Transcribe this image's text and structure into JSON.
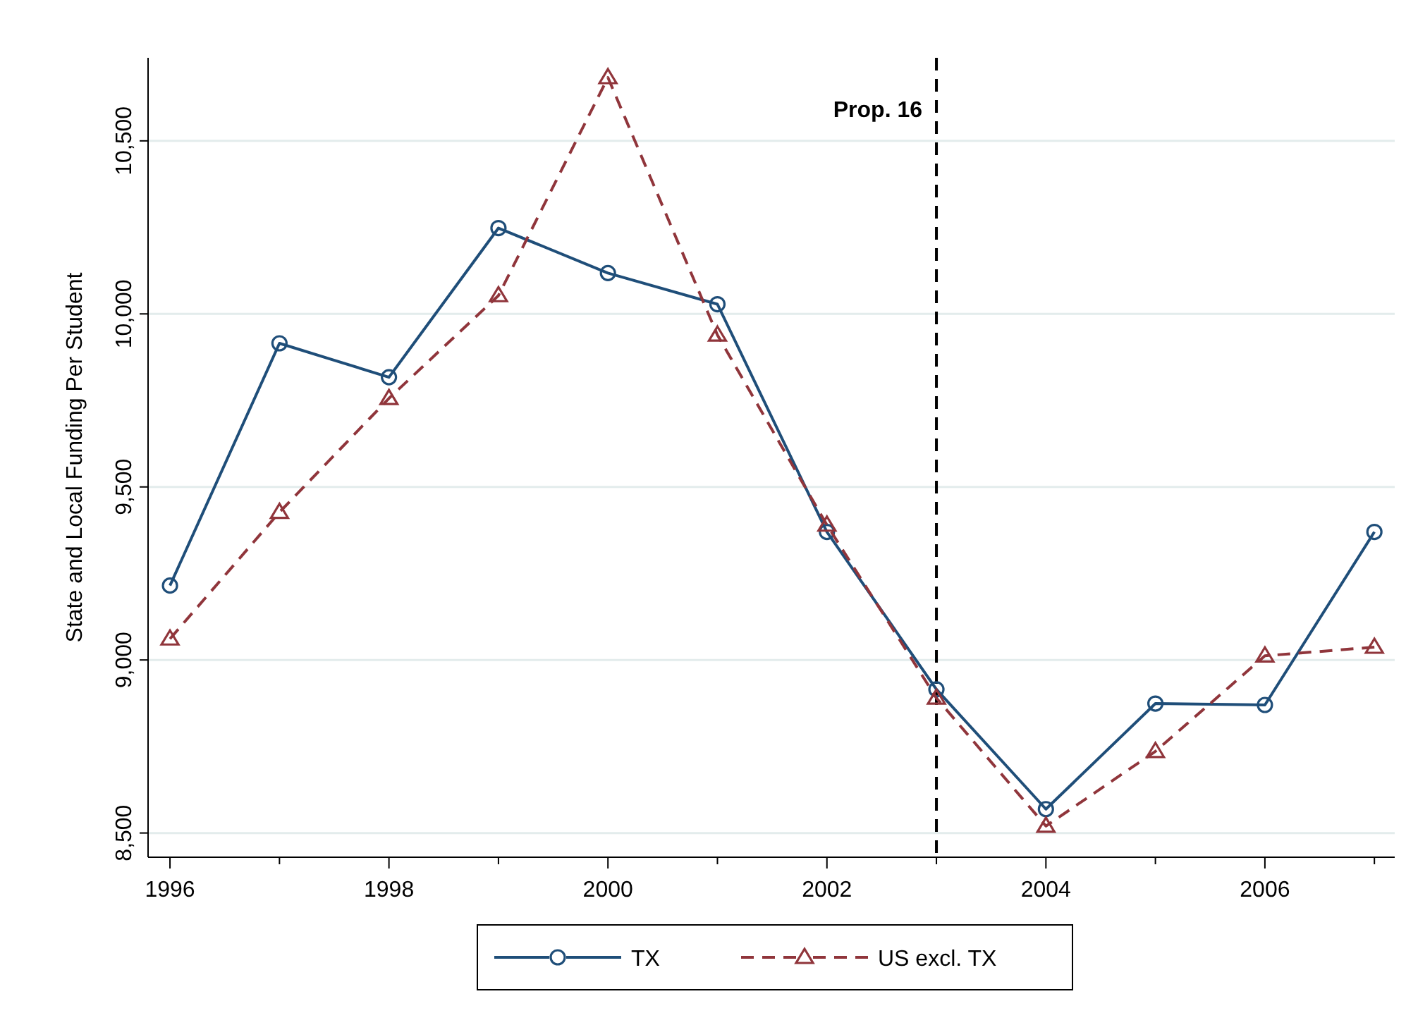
{
  "chart_data": {
    "type": "line",
    "ylabel": "State and Local Funding Per Student",
    "x": [
      1996,
      1997,
      1998,
      1999,
      2000,
      2001,
      2002,
      2003,
      2004,
      2005,
      2006,
      2007
    ],
    "series": [
      {
        "name": "TX",
        "color": "#1f4e79",
        "marker": "circle",
        "line_style": "solid",
        "values": [
          9215,
          9915,
          9817,
          10248,
          10118,
          10028,
          9370,
          8915,
          8569,
          8874,
          8870,
          9370
        ]
      },
      {
        "name": "US excl. TX",
        "color": "#90353b",
        "marker": "triangle",
        "line_style": "dashed",
        "values": [
          9061,
          9427,
          9756,
          10053,
          10683,
          9939,
          9390,
          8890,
          8520,
          8736,
          9012,
          9037
        ]
      }
    ],
    "xlim": [
      1995.8,
      2007.25
    ],
    "ylim": [
      8430,
      10740
    ],
    "xticks": [
      1996,
      {
        "value": 1997,
        "label": null
      },
      1998,
      {
        "value": 1999,
        "label": null
      },
      2000,
      {
        "value": 2001,
        "label": null
      },
      2002,
      {
        "value": 2003,
        "label": null
      },
      2004,
      {
        "value": 2005,
        "label": null
      },
      2006,
      {
        "value": 2007,
        "label": null
      }
    ],
    "yticks": [
      {
        "value": 8500,
        "label": "8,500"
      },
      {
        "value": 9000,
        "label": "9,000"
      },
      {
        "value": 9500,
        "label": "9,500"
      },
      {
        "value": 10000,
        "label": "10,000"
      },
      {
        "value": 10500,
        "label": "10,500"
      }
    ],
    "grid": "y",
    "legend": "bottom",
    "ref_lines": [
      {
        "axis": "x",
        "value": 2003,
        "label": "Prop. 16",
        "color": "#000000",
        "line_style": "dashed"
      }
    ]
  }
}
